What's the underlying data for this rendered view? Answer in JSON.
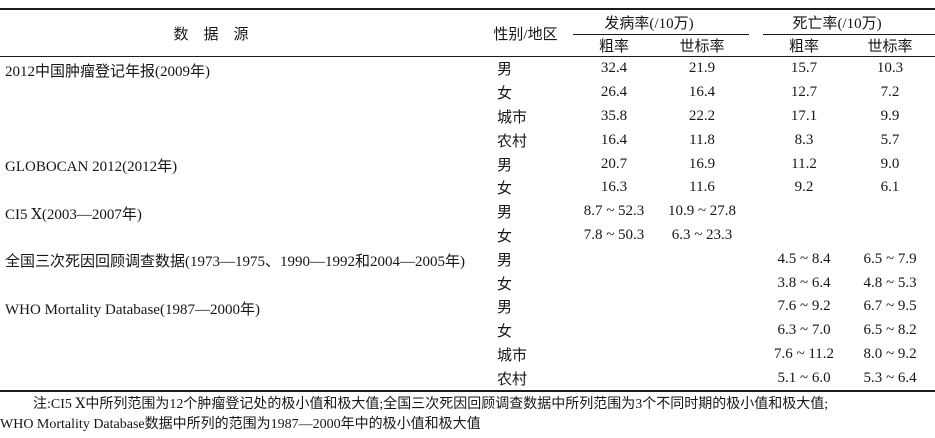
{
  "page": {
    "background_color": "#ffffff",
    "text_color": "#161616",
    "rule_color": "#1a1a1a"
  },
  "table": {
    "header": {
      "source": "数　据　源",
      "sex_region": "性别/地区",
      "incidence": "发病率(/10万)",
      "mortality": "死亡率(/10万)",
      "crude": "粗率",
      "standardized": "世标率"
    },
    "groups": [
      {
        "source": "2012中国肿瘤登记年报(2009年)",
        "rows": [
          {
            "sex_region": "男",
            "incidence_crude": "32.4",
            "incidence_std": "21.9",
            "mortality_crude": "15.7",
            "mortality_std": "10.3"
          },
          {
            "sex_region": "女",
            "incidence_crude": "26.4",
            "incidence_std": "16.4",
            "mortality_crude": "12.7",
            "mortality_std": "7.2"
          },
          {
            "sex_region": "城市",
            "incidence_crude": "35.8",
            "incidence_std": "22.2",
            "mortality_crude": "17.1",
            "mortality_std": "9.9"
          },
          {
            "sex_region": "农村",
            "incidence_crude": "16.4",
            "incidence_std": "11.8",
            "mortality_crude": "8.3",
            "mortality_std": "5.7"
          }
        ]
      },
      {
        "source": "GLOBOCAN 2012(2012年)",
        "rows": [
          {
            "sex_region": "男",
            "incidence_crude": "20.7",
            "incidence_std": "16.9",
            "mortality_crude": "11.2",
            "mortality_std": "9.0"
          },
          {
            "sex_region": "女",
            "incidence_crude": "16.3",
            "incidence_std": "11.6",
            "mortality_crude": "9.2",
            "mortality_std": "6.1"
          }
        ]
      },
      {
        "source": "CI5 Ⅹ(2003—2007年)",
        "rows": [
          {
            "sex_region": "男",
            "incidence_crude": "8.7 ~ 52.3",
            "incidence_std": "10.9 ~ 27.8",
            "mortality_crude": "",
            "mortality_std": ""
          },
          {
            "sex_region": "女",
            "incidence_crude": "7.8 ~ 50.3",
            "incidence_std": "6.3 ~ 23.3",
            "mortality_crude": "",
            "mortality_std": ""
          }
        ]
      },
      {
        "source": "全国三次死因回顾调查数据(1973—1975、1990—1992和2004—2005年)",
        "rows": [
          {
            "sex_region": "男",
            "incidence_crude": "",
            "incidence_std": "",
            "mortality_crude": "4.5 ~ 8.4",
            "mortality_std": "6.5 ~ 7.9"
          },
          {
            "sex_region": "女",
            "incidence_crude": "",
            "incidence_std": "",
            "mortality_crude": "3.8 ~ 6.4",
            "mortality_std": "4.8 ~ 5.3"
          }
        ]
      },
      {
        "source": "WHO Mortality Database(1987—2000年)",
        "rows": [
          {
            "sex_region": "男",
            "incidence_crude": "",
            "incidence_std": "",
            "mortality_crude": "7.6 ~ 9.2",
            "mortality_std": "6.7 ~ 9.5"
          },
          {
            "sex_region": "女",
            "incidence_crude": "",
            "incidence_std": "",
            "mortality_crude": "6.3 ~ 7.0",
            "mortality_std": "6.5 ~ 8.2"
          },
          {
            "sex_region": "城市",
            "incidence_crude": "",
            "incidence_std": "",
            "mortality_crude": "7.6 ~ 11.2",
            "mortality_std": "8.0 ~ 9.2"
          },
          {
            "sex_region": "农村",
            "incidence_crude": "",
            "incidence_std": "",
            "mortality_crude": "5.1 ~ 6.0",
            "mortality_std": "5.3 ~ 6.4"
          }
        ]
      }
    ]
  },
  "note": {
    "line1": "注:CI5 Ⅹ中所列范围为12个肿瘤登记处的极小值和极大值;全国三次死因回顾调查数据中所列范围为3个不同时期的极小值和极大值;",
    "line2": "WHO Mortality Database数据中所列的范围为1987—2000年中的极小值和极大值"
  }
}
